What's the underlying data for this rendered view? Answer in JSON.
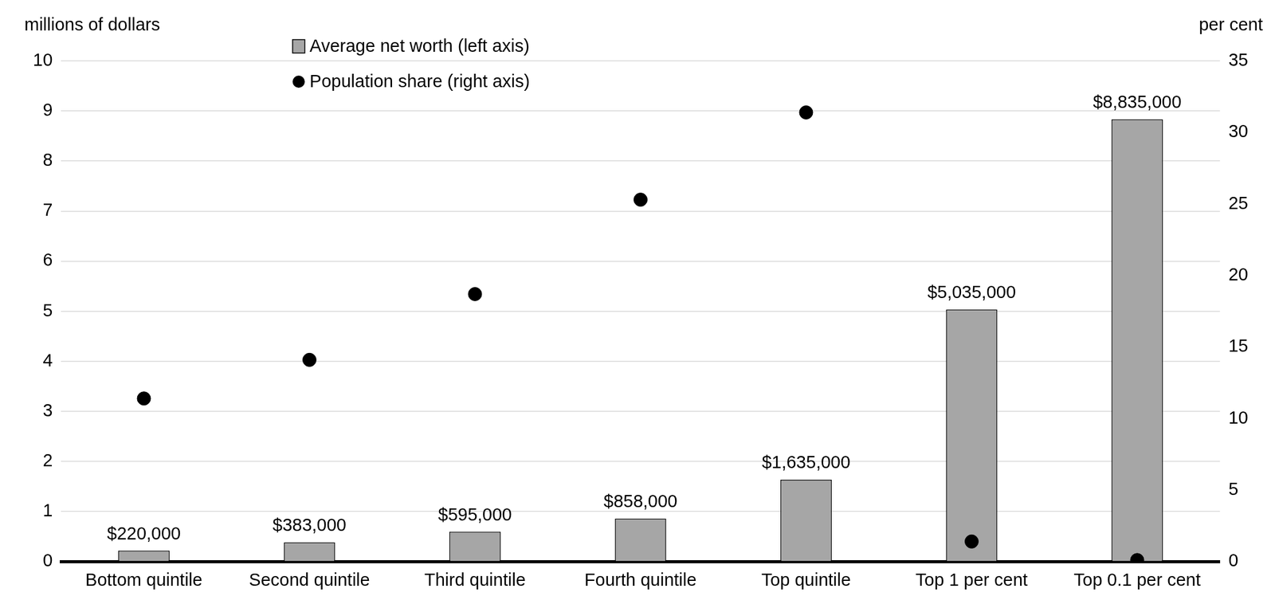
{
  "chart_data": {
    "type": "bar",
    "categories": [
      "Bottom quintile",
      "Second quintile",
      "Third quintile",
      "Fourth quintile",
      "Top quintile",
      "Top 1 per cent",
      "Top 0.1 per cent"
    ],
    "series": [
      {
        "name": "Average net worth (left axis)",
        "type": "bar",
        "color": "#a6a6a6",
        "values": [
          0.22,
          0.383,
          0.595,
          0.858,
          1.635,
          5.035,
          8.835
        ],
        "value_labels": [
          "$220,000",
          "$383,000",
          "$595,000",
          "$858,000",
          "$1,635,000",
          "$5,035,000",
          "$8,835,000"
        ]
      },
      {
        "name": "Population share (right axis)",
        "type": "scatter",
        "marker": "circle",
        "color": "#000000",
        "axis": "y2",
        "values": [
          11.4,
          14.1,
          18.7,
          25.3,
          31.4,
          1.4,
          0.1
        ]
      }
    ],
    "ylabel": "millions of dollars",
    "y2label": "per cent",
    "ylim": [
      0,
      10
    ],
    "yticks": [
      0,
      1,
      2,
      3,
      4,
      5,
      6,
      7,
      8,
      9,
      10
    ],
    "y2lim": [
      0,
      35
    ],
    "y2ticks": [
      0,
      5,
      10,
      15,
      20,
      25,
      30,
      35
    ],
    "grid": true,
    "legend": "top",
    "data_labels": true
  }
}
